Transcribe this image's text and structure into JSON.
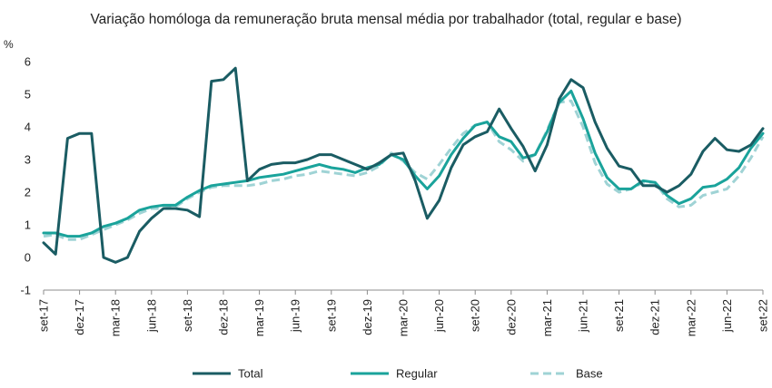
{
  "chart_data": {
    "type": "line",
    "title": "Variação homóloga da remuneração bruta mensal média por trabalhador (total, regular e base)",
    "ylabel": "%",
    "xlabel": "",
    "ylim": [
      -1,
      6
    ],
    "yticks": [
      -1,
      0,
      1,
      2,
      3,
      4,
      5,
      6
    ],
    "grid": false,
    "legend_position": "bottom",
    "x": [
      "set-17",
      "out-17",
      "nov-17",
      "dez-17",
      "jan-18",
      "fev-18",
      "mar-18",
      "abr-18",
      "mai-18",
      "jun-18",
      "jul-18",
      "ago-18",
      "set-18",
      "out-18",
      "nov-18",
      "dez-18",
      "jan-19",
      "fev-19",
      "mar-19",
      "abr-19",
      "mai-19",
      "jun-19",
      "jul-19",
      "ago-19",
      "set-19",
      "out-19",
      "nov-19",
      "dez-19",
      "jan-20",
      "fev-20",
      "mar-20",
      "abr-20",
      "mai-20",
      "jun-20",
      "jul-20",
      "ago-20",
      "set-20",
      "out-20",
      "nov-20",
      "dez-20",
      "jan-21",
      "fev-21",
      "mar-21",
      "abr-21",
      "mai-21",
      "jun-21",
      "jul-21",
      "ago-21",
      "set-21",
      "out-21",
      "nov-21",
      "dez-21",
      "jan-22",
      "fev-22",
      "mar-22",
      "abr-22",
      "mai-22",
      "jun-22",
      "jul-22",
      "ago-22",
      "set-22"
    ],
    "tick_labels": [
      "set-17",
      "dez-17",
      "mar-18",
      "jun-18",
      "set-18",
      "dez-18",
      "mar-19",
      "jun-19",
      "set-19",
      "dez-19",
      "mar-20",
      "jun-20",
      "set-20",
      "dez-20",
      "mar-21",
      "jun-21",
      "set-21",
      "dez-21",
      "mar-22",
      "jun-22",
      "set-22"
    ],
    "series": [
      {
        "name": "Total",
        "color": "#1a5c63",
        "style": "solid",
        "values": [
          0.45,
          0.1,
          3.65,
          3.8,
          3.8,
          0.0,
          -0.15,
          0.0,
          0.8,
          1.2,
          1.5,
          1.5,
          1.45,
          1.25,
          5.4,
          5.45,
          5.8,
          2.35,
          2.7,
          2.85,
          2.9,
          2.9,
          3.0,
          3.15,
          3.15,
          3.0,
          2.85,
          2.7,
          2.9,
          3.15,
          3.2,
          2.35,
          1.2,
          1.75,
          2.75,
          3.45,
          3.7,
          3.85,
          4.55,
          3.95,
          3.4,
          2.65,
          3.45,
          4.85,
          5.45,
          5.2,
          4.15,
          3.35,
          2.8,
          2.7,
          2.2,
          2.2,
          2.0,
          2.2,
          2.55,
          3.25,
          3.65,
          3.3,
          3.25,
          3.45,
          3.95
        ]
      },
      {
        "name": "Regular",
        "color": "#1aa39b",
        "style": "solid",
        "values": [
          0.75,
          0.75,
          0.65,
          0.65,
          0.75,
          0.95,
          1.05,
          1.2,
          1.45,
          1.55,
          1.6,
          1.6,
          1.85,
          2.05,
          2.2,
          2.25,
          2.3,
          2.35,
          2.45,
          2.5,
          2.55,
          2.65,
          2.75,
          2.85,
          2.75,
          2.7,
          2.6,
          2.75,
          2.85,
          3.15,
          3.0,
          2.5,
          2.1,
          2.5,
          3.15,
          3.65,
          4.05,
          4.15,
          3.7,
          3.55,
          3.05,
          3.15,
          3.85,
          4.75,
          5.1,
          4.25,
          3.2,
          2.45,
          2.1,
          2.1,
          2.35,
          2.3,
          1.9,
          1.65,
          1.8,
          2.15,
          2.2,
          2.4,
          2.75,
          3.35,
          3.8
        ]
      },
      {
        "name": "Base",
        "color": "#9fd3d5",
        "style": "dashed",
        "values": [
          0.65,
          0.7,
          0.55,
          0.55,
          0.7,
          0.85,
          1.0,
          1.15,
          1.35,
          1.5,
          1.5,
          1.55,
          1.8,
          2.0,
          2.15,
          2.2,
          2.2,
          2.2,
          2.25,
          2.35,
          2.4,
          2.5,
          2.55,
          2.65,
          2.6,
          2.55,
          2.5,
          2.6,
          2.8,
          3.2,
          2.95,
          2.6,
          2.4,
          2.85,
          3.35,
          3.8,
          4.05,
          4.15,
          3.55,
          3.3,
          2.95,
          3.15,
          3.9,
          4.75,
          4.8,
          4.0,
          2.9,
          2.25,
          2.0,
          2.1,
          2.3,
          2.3,
          1.8,
          1.55,
          1.6,
          1.9,
          2.0,
          2.1,
          2.5,
          3.05,
          3.7
        ]
      }
    ]
  }
}
